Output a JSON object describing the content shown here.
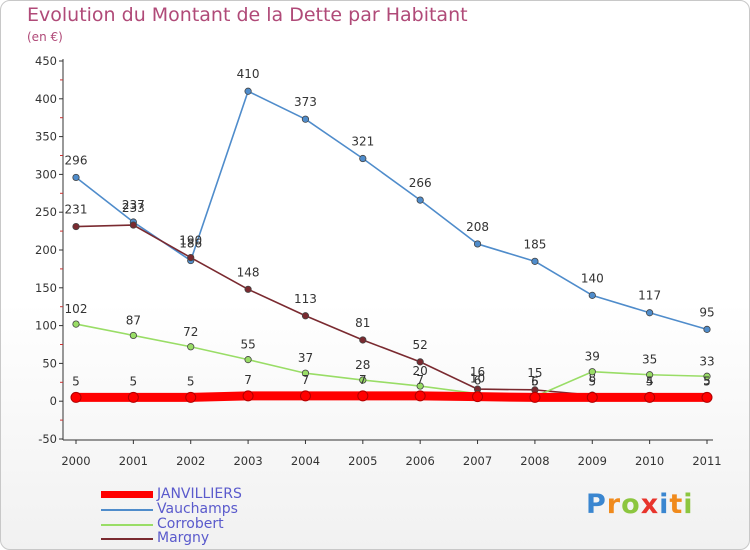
{
  "chart_data": {
    "type": "line",
    "title": "Evolution du Montant de la Dette par Habitant",
    "subtitle": "(en €)",
    "categories": [
      "2000",
      "2001",
      "2002",
      "2003",
      "2004",
      "2005",
      "2006",
      "2007",
      "2008",
      "2009",
      "2010",
      "2011"
    ],
    "ylim": [
      -50,
      450
    ],
    "yticks": [
      -50,
      0,
      50,
      100,
      150,
      200,
      250,
      300,
      350,
      400,
      450
    ],
    "grid": false,
    "legend_position": "bottom-left",
    "series": [
      {
        "name": "JANVILLIERS",
        "color": "#ff0000",
        "values": [
          5,
          5,
          5,
          7,
          7,
          7,
          7,
          6,
          5,
          5,
          5,
          5
        ]
      },
      {
        "name": "Vauchamps",
        "color": "#4f8ccb",
        "values": [
          296,
          237,
          186,
          410,
          373,
          321,
          266,
          208,
          185,
          140,
          117,
          95
        ]
      },
      {
        "name": "Corrobert",
        "color": "#99dd66",
        "values": [
          102,
          87,
          72,
          55,
          37,
          28,
          20,
          10,
          6,
          39,
          35,
          33
        ]
      },
      {
        "name": "Margny",
        "color": "#7a2a30",
        "values": [
          231,
          233,
          190,
          148,
          113,
          81,
          52,
          16,
          15,
          8,
          4,
          5
        ]
      }
    ]
  },
  "logo": {
    "letters": [
      "P",
      "r",
      "o",
      "x",
      "i",
      "t",
      "i"
    ]
  }
}
